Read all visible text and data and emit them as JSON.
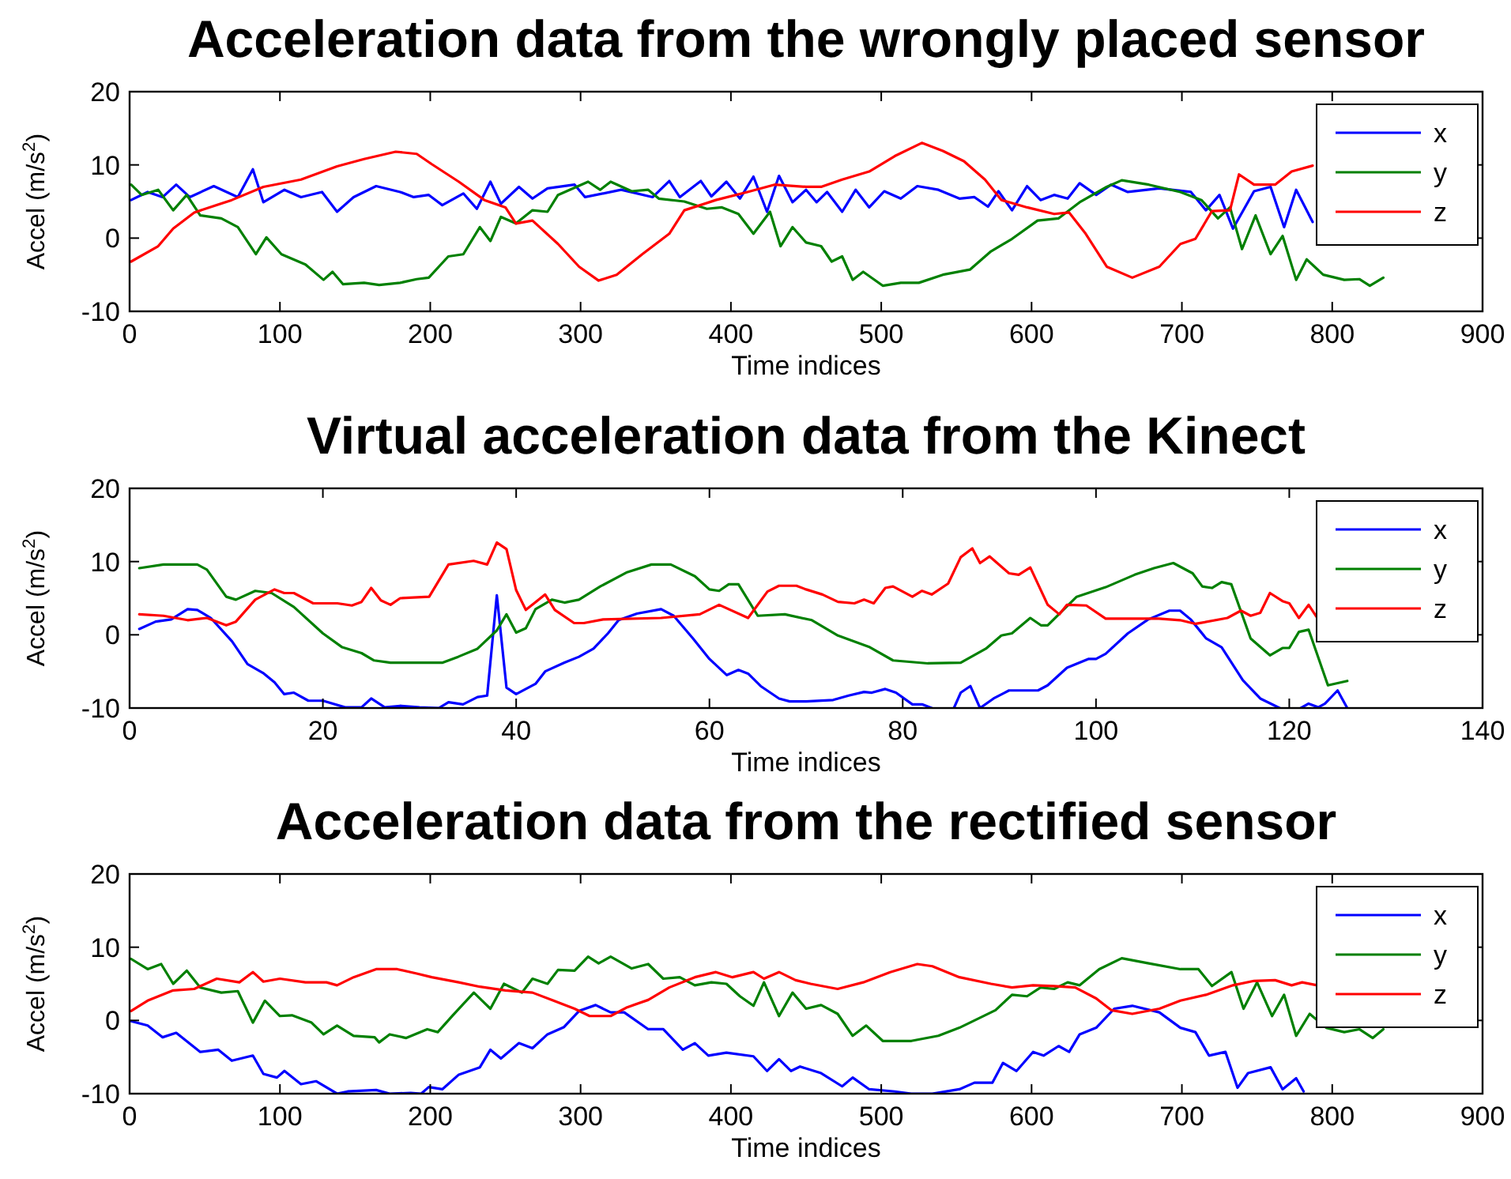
{
  "chart_data": [
    {
      "type": "line",
      "title": "Acceleration data from the wrongly placed sensor",
      "xlabel": "Time indices",
      "ylabel": "Accel (m/s$^{2}$)",
      "xlim": [
        0,
        900
      ],
      "xticks": [
        0,
        100,
        200,
        300,
        400,
        500,
        600,
        700,
        800,
        900
      ],
      "ylim": [
        -10,
        20
      ],
      "yticks": [
        -10,
        0,
        10,
        20
      ],
      "legend": "top right",
      "series": [
        {
          "name": "x",
          "color": "#0000ff",
          "x": [
            1,
            12,
            22,
            31,
            40,
            56,
            72,
            82,
            89,
            103,
            114,
            128,
            138,
            149,
            164,
            180,
            189,
            199,
            208,
            222,
            231,
            240,
            247,
            259,
            268,
            278,
            296,
            303,
            327,
            348,
            359,
            366,
            380,
            387,
            397,
            406,
            415,
            424,
            432,
            441,
            450,
            457,
            464,
            474,
            483,
            492,
            502,
            513,
            524,
            538,
            552,
            562,
            571,
            578,
            587,
            597,
            606,
            615,
            624,
            632,
            643,
            653,
            664,
            685,
            706,
            716,
            725,
            734,
            748,
            759,
            768,
            776,
            787
          ],
          "values": [
            5.2,
            6.3,
            5.6,
            7.3,
            5.6,
            7.1,
            5.6,
            9.4,
            4.9,
            6.6,
            5.6,
            6.3,
            3.6,
            5.6,
            7.1,
            6.3,
            5.6,
            5.9,
            4.5,
            6.1,
            4.0,
            7.7,
            4.7,
            7.0,
            5.4,
            6.8,
            7.3,
            5.6,
            6.6,
            5.6,
            7.8,
            5.6,
            7.8,
            5.7,
            7.7,
            5.4,
            8.4,
            3.6,
            8.5,
            4.9,
            6.6,
            4.9,
            6.3,
            3.6,
            6.6,
            4.2,
            6.4,
            5.4,
            7.1,
            6.6,
            5.4,
            5.6,
            4.3,
            6.4,
            3.8,
            7.1,
            5.2,
            5.9,
            5.4,
            7.5,
            5.9,
            7.3,
            6.3,
            6.8,
            6.3,
            3.8,
            5.9,
            1.3,
            6.4,
            7.0,
            1.5,
            6.6,
            2.2
          ]
        },
        {
          "name": "y",
          "color": "#008000",
          "x": [
            1,
            8,
            19,
            29,
            38,
            47,
            61,
            72,
            84,
            91,
            101,
            117,
            129,
            135,
            142,
            156,
            166,
            180,
            191,
            199,
            212,
            222,
            233,
            240,
            247,
            257,
            268,
            278,
            285,
            305,
            313,
            320,
            334,
            345,
            352,
            369,
            384,
            394,
            405,
            415,
            426,
            433,
            441,
            450,
            460,
            467,
            474,
            481,
            488,
            501,
            513,
            525,
            541,
            559,
            573,
            587,
            604,
            618,
            632,
            650,
            660,
            678,
            699,
            713,
            724,
            732,
            740,
            749,
            759,
            767,
            776,
            783,
            794,
            808,
            818,
            825,
            834
          ],
          "values": [
            7.3,
            5.9,
            6.6,
            3.8,
            5.9,
            3.1,
            2.7,
            1.5,
            -2.2,
            0.1,
            -2.2,
            -3.6,
            -5.7,
            -4.6,
            -6.3,
            -6.1,
            -6.4,
            -6.1,
            -5.6,
            -5.4,
            -2.5,
            -2.2,
            1.5,
            -0.4,
            2.9,
            2.0,
            3.8,
            3.6,
            5.9,
            7.7,
            6.6,
            7.7,
            6.4,
            6.6,
            5.4,
            5.0,
            4.0,
            4.2,
            3.3,
            0.6,
            3.6,
            -1.1,
            1.5,
            -0.6,
            -1.1,
            -3.2,
            -2.5,
            -5.7,
            -4.6,
            -6.5,
            -6.1,
            -6.1,
            -5.0,
            -4.3,
            -1.8,
            -0.1,
            2.4,
            2.7,
            4.9,
            7.0,
            7.9,
            7.3,
            6.3,
            5.2,
            2.7,
            4.2,
            -1.5,
            3.1,
            -2.2,
            0.3,
            -5.7,
            -2.9,
            -5.0,
            -5.7,
            -5.6,
            -6.5,
            -5.4
          ]
        },
        {
          "name": "z",
          "color": "#ff0000",
          "x": [
            1,
            19,
            29,
            43,
            68,
            89,
            114,
            138,
            156,
            177,
            191,
            201,
            219,
            236,
            250,
            257,
            268,
            285,
            299,
            312,
            324,
            341,
            359,
            369,
            390,
            411,
            429,
            450,
            460,
            474,
            492,
            509,
            527,
            541,
            555,
            569,
            580,
            597,
            615,
            625,
            636,
            650,
            667,
            685,
            699,
            709,
            720,
            732,
            738,
            748,
            762,
            773,
            787
          ],
          "values": [
            -3.2,
            -1.1,
            1.3,
            3.5,
            5.2,
            7.0,
            8.0,
            9.8,
            10.8,
            11.8,
            11.5,
            10.1,
            7.7,
            5.2,
            4.2,
            2.0,
            2.4,
            -0.8,
            -3.9,
            -5.8,
            -5.0,
            -2.2,
            0.6,
            3.8,
            5.2,
            6.3,
            7.3,
            7.0,
            7.0,
            8.0,
            9.1,
            11.2,
            13.0,
            11.9,
            10.5,
            8.0,
            5.2,
            4.2,
            3.3,
            3.5,
            0.6,
            -3.9,
            -5.4,
            -3.9,
            -0.8,
            -0.1,
            3.7,
            3.8,
            8.7,
            7.3,
            7.3,
            9.1,
            9.9
          ]
        }
      ]
    },
    {
      "type": "line",
      "title": "Virtual acceleration data from the Kinect",
      "xlabel": "Time indices",
      "ylabel": "Accel (m/s$^{2}$)",
      "xlim": [
        0,
        140
      ],
      "xticks": [
        0,
        20,
        40,
        60,
        80,
        100,
        120,
        140
      ],
      "ylim": [
        -10,
        20
      ],
      "yticks": [
        -10,
        0,
        10,
        20
      ],
      "legend": "top right",
      "series": [
        {
          "name": "x",
          "color": "#0000ff",
          "x": [
            1,
            2.7,
            4.3,
            6,
            7,
            8.4,
            10.6,
            12.2,
            13.8,
            15,
            16,
            17,
            18.5,
            20,
            22.3,
            24,
            25,
            26.4,
            28,
            30,
            32,
            33,
            34.5,
            36,
            37,
            38,
            39,
            40,
            42,
            43,
            45,
            46.5,
            48,
            49.5,
            50.6,
            52.5,
            55,
            56.3,
            58.3,
            60,
            61.8,
            63,
            64,
            65.3,
            67.2,
            68.3,
            70,
            72.8,
            74.4,
            76,
            76.8,
            78.2,
            79.3,
            81,
            82,
            83,
            85,
            85.3,
            86,
            87,
            88,
            89.4,
            91,
            94,
            95,
            97,
            99.2,
            100,
            101,
            103.3,
            105.4,
            107.6,
            108.7,
            109.8,
            111.4,
            113,
            115.2,
            117,
            119,
            120,
            121.2,
            122,
            123,
            123.7,
            125,
            126
          ],
          "values": [
            0.8,
            1.8,
            2.1,
            3.5,
            3.4,
            2.3,
            -0.9,
            -4.0,
            -5.2,
            -6.5,
            -8.1,
            -7.9,
            -9.0,
            -9.0,
            -9.9,
            -9.9,
            -8.7,
            -9.9,
            -9.7,
            -9.9,
            -10,
            -9.2,
            -9.5,
            -8.5,
            -8.3,
            5.4,
            -7.2,
            -8.1,
            -6.7,
            -5.0,
            -3.8,
            -3.0,
            -1.9,
            0.2,
            2.0,
            2.9,
            3.5,
            2.6,
            -0.5,
            -3.3,
            -5.5,
            -4.8,
            -5.3,
            -7.0,
            -8.7,
            -9.1,
            -9.1,
            -8.9,
            -8.3,
            -7.8,
            -7.9,
            -7.4,
            -7.9,
            -9.5,
            -9.5,
            -10,
            null,
            -10,
            -7.9,
            -7.0,
            -10,
            -8.7,
            -7.6,
            -7.6,
            -6.9,
            -4.5,
            -3.3,
            -3.3,
            -2.6,
            0.2,
            2.1,
            3.3,
            3.3,
            2.1,
            -0.5,
            -1.7,
            -6.2,
            -8.7,
            -10,
            null,
            -10,
            -9.4,
            -9.9,
            -9.4,
            -7.6,
            -10
          ]
        },
        {
          "name": "y",
          "color": "#008000",
          "x": [
            1,
            3.5,
            7,
            8,
            10,
            11,
            13,
            14.7,
            17,
            20,
            22,
            24,
            25.3,
            27,
            32.4,
            34,
            36,
            38,
            39,
            40,
            41,
            42,
            43.7,
            45,
            46.5,
            48.7,
            51.4,
            54,
            56,
            58.5,
            60,
            61,
            62,
            63,
            65,
            67.8,
            70.6,
            73.3,
            76.6,
            79,
            82.6,
            86,
            88.6,
            90.2,
            91.3,
            93.2,
            94.3,
            95,
            98,
            101,
            104,
            106,
            108,
            110,
            111,
            112,
            113,
            114,
            116,
            118,
            119.3,
            120,
            121,
            122,
            124,
            126
          ],
          "values": [
            9.1,
            9.6,
            9.6,
            8.9,
            5.2,
            4.8,
            6.0,
            5.7,
            3.8,
            0.2,
            -1.7,
            -2.5,
            -3.5,
            -3.8,
            -3.8,
            -3.0,
            -1.9,
            0.6,
            2.8,
            0.3,
            0.9,
            3.5,
            4.8,
            4.4,
            4.8,
            6.6,
            8.5,
            9.6,
            9.6,
            8.0,
            6.2,
            6.0,
            6.9,
            6.9,
            2.6,
            2.8,
            2.0,
            -0.1,
            -1.7,
            -3.5,
            -3.9,
            -3.8,
            -1.9,
            -0.1,
            0.2,
            2.3,
            1.3,
            1.3,
            5.2,
            6.5,
            8.2,
            9.1,
            9.8,
            8.4,
            6.6,
            6.4,
            7.2,
            6.9,
            -0.5,
            -2.8,
            -1.8,
            -1.8,
            0.4,
            0.7,
            -6.9,
            -6.3
          ]
        },
        {
          "name": "z",
          "color": "#ff0000",
          "x": [
            1,
            3.5,
            6,
            8,
            10,
            11,
            13,
            15,
            16,
            17,
            19,
            21.5,
            23,
            24,
            25,
            26,
            27,
            28,
            31,
            33,
            35.6,
            37,
            38,
            39,
            40,
            41,
            43,
            44,
            46,
            47,
            49,
            55,
            59,
            61,
            64,
            66,
            67.2,
            69,
            70,
            71.7,
            73.3,
            75,
            76,
            77,
            78.2,
            79,
            81,
            82,
            83,
            84.7,
            86,
            87.2,
            88,
            89,
            91,
            92,
            93.2,
            95,
            96.2,
            97,
            99,
            101,
            106.5,
            108.7,
            110.3,
            113.6,
            115,
            116,
            117,
            118,
            119.3,
            120,
            121,
            122,
            123
          ],
          "values": [
            2.8,
            2.6,
            2.0,
            2.3,
            1.3,
            1.8,
            4.8,
            6.2,
            5.7,
            5.7,
            4.3,
            4.3,
            4.0,
            4.5,
            6.4,
            4.7,
            4.1,
            5.0,
            5.2,
            9.6,
            10.1,
            9.6,
            12.6,
            11.7,
            6.1,
            3.4,
            5.5,
            3.4,
            1.6,
            1.6,
            2.1,
            2.3,
            2.8,
            4.1,
            2.3,
            5.9,
            6.7,
            6.7,
            6.2,
            5.5,
            4.5,
            4.3,
            4.8,
            4.3,
            6.4,
            6.6,
            5.2,
            6.0,
            5.5,
            7.0,
            10.6,
            11.8,
            9.8,
            10.7,
            8.4,
            8.2,
            9.2,
            4.1,
            2.8,
            4.1,
            4.0,
            2.2,
            2.2,
            2.0,
            1.5,
            2.3,
            3.3,
            2.6,
            3.0,
            5.7,
            4.6,
            4.3,
            2.3,
            4.1,
            2.1
          ]
        }
      ]
    },
    {
      "type": "line",
      "title": "Acceleration data from the rectified sensor",
      "xlabel": "Time indices",
      "ylabel": "Accel (m/s$^{2}$)",
      "xlim": [
        0,
        900
      ],
      "xticks": [
        0,
        100,
        200,
        300,
        400,
        500,
        600,
        700,
        800,
        900
      ],
      "ylim": [
        -10,
        20
      ],
      "yticks": [
        -10,
        0,
        10,
        20
      ],
      "legend": "top right",
      "series": [
        {
          "name": "x",
          "color": "#0000ff",
          "x": [
            1,
            12,
            22,
            31,
            47,
            59,
            68,
            82,
            89,
            98,
            103,
            114,
            124,
            138,
            145,
            164,
            173,
            187,
            194,
            199,
            208,
            219,
            233,
            240,
            247,
            259,
            268,
            278,
            289,
            299,
            310,
            320,
            329,
            345,
            355,
            368,
            376,
            385,
            397,
            415,
            424,
            432,
            440,
            446,
            460,
            474,
            481,
            492,
            509,
            520,
            534,
            552,
            562,
            574,
            581,
            590,
            601,
            608,
            618,
            625,
            632,
            643,
            655,
            667,
            685,
            699,
            709,
            718,
            729,
            737,
            744,
            759,
            767,
            776,
            781
          ],
          "values": [
            -0.1,
            -0.7,
            -2.3,
            -1.7,
            -4.3,
            -4.0,
            -5.5,
            -4.8,
            -7.3,
            -7.8,
            -6.9,
            -8.7,
            -8.3,
            -10,
            -9.7,
            -9.5,
            -10,
            -9.9,
            -10,
            -9.1,
            -9.4,
            -7.4,
            -6.4,
            -4.0,
            -5.2,
            -3.1,
            -3.8,
            -1.9,
            -0.9,
            1.3,
            2.1,
            1.1,
            1.1,
            -1.2,
            -1.2,
            -4.0,
            -3.1,
            -4.8,
            -4.4,
            -4.9,
            -6.9,
            -5.3,
            -6.9,
            -6.3,
            -7.2,
            -9.0,
            -7.8,
            -9.4,
            -9.7,
            -10,
            -10,
            -9.4,
            -8.5,
            -8.5,
            -5.8,
            -6.9,
            -4.3,
            -4.8,
            -3.5,
            -4.3,
            -1.9,
            -1.0,
            1.6,
            2.0,
            1.1,
            -1.0,
            -1.6,
            -4.8,
            -4.3,
            -9.2,
            -7.2,
            -6.4,
            -9.4,
            -7.9,
            -9.7
          ]
        },
        {
          "name": "y",
          "color": "#008000",
          "x": [
            1,
            12,
            21,
            29,
            38,
            47,
            61,
            72,
            82,
            90,
            100,
            108,
            121,
            129,
            138,
            149,
            163,
            166,
            173,
            184,
            198,
            205,
            215,
            229,
            240,
            249,
            261,
            268,
            278,
            285,
            296,
            305,
            312,
            320,
            334,
            345,
            355,
            366,
            376,
            387,
            397,
            406,
            415,
            422,
            432,
            441,
            450,
            460,
            471,
            481,
            490,
            501,
            520,
            538,
            552,
            569,
            576,
            587,
            597,
            606,
            615,
            624,
            632,
            645,
            660,
            678,
            699,
            711,
            720,
            733,
            741,
            750,
            760,
            768,
            776,
            785,
            796,
            808,
            818,
            827,
            834
          ],
          "values": [
            8.4,
            7.0,
            7.7,
            5.0,
            6.8,
            4.5,
            3.8,
            4.0,
            -0.3,
            2.7,
            0.6,
            0.7,
            -0.3,
            -1.9,
            -0.7,
            -2.1,
            -2.3,
            -3.0,
            -1.9,
            -2.4,
            -1.2,
            -1.6,
            0.7,
            3.8,
            1.6,
            5.0,
            3.8,
            5.7,
            5.0,
            6.9,
            6.8,
            8.7,
            7.8,
            8.7,
            7.1,
            7.7,
            5.7,
            5.9,
            4.8,
            5.2,
            5.0,
            3.3,
            2.0,
            5.2,
            0.6,
            3.8,
            1.6,
            2.1,
            0.9,
            -2.1,
            -0.7,
            -2.8,
            -2.8,
            -2.1,
            -1.0,
            0.7,
            1.4,
            3.5,
            3.3,
            4.5,
            4.3,
            5.2,
            4.8,
            7.0,
            8.5,
            7.8,
            7.0,
            7.0,
            4.7,
            6.6,
            1.6,
            5.2,
            0.6,
            3.5,
            -2.1,
            0.9,
            -1.0,
            -1.6,
            -1.2,
            -2.4,
            -1.2
          ]
        },
        {
          "name": "z",
          "color": "#ff0000",
          "x": [
            1,
            12,
            29,
            43,
            58,
            73,
            82,
            89,
            100,
            117,
            131,
            138,
            149,
            164,
            178,
            191,
            201,
            219,
            233,
            250,
            268,
            282,
            296,
            306,
            320,
            331,
            345,
            359,
            376,
            390,
            401,
            415,
            422,
            432,
            443,
            453,
            471,
            488,
            506,
            524,
            534,
            552,
            573,
            587,
            601,
            615,
            629,
            643,
            653,
            667,
            685,
            699,
            716,
            734,
            748,
            762,
            773,
            780,
            790
          ],
          "values": [
            1.3,
            2.7,
            4.1,
            4.3,
            5.7,
            5.2,
            6.6,
            5.3,
            5.7,
            5.2,
            5.2,
            4.8,
            5.9,
            7.0,
            7.0,
            6.4,
            5.9,
            5.2,
            4.6,
            4.1,
            3.8,
            2.7,
            1.6,
            0.6,
            0.6,
            1.8,
            2.8,
            4.5,
            5.9,
            6.6,
            5.9,
            6.6,
            5.7,
            6.6,
            5.5,
            5.0,
            4.3,
            5.2,
            6.6,
            7.7,
            7.4,
            5.9,
            5.0,
            4.5,
            4.8,
            4.7,
            4.5,
            3.0,
            1.4,
            0.9,
            1.6,
            2.7,
            3.5,
            4.8,
            5.4,
            5.5,
            4.8,
            5.2,
            4.8
          ]
        }
      ]
    }
  ]
}
